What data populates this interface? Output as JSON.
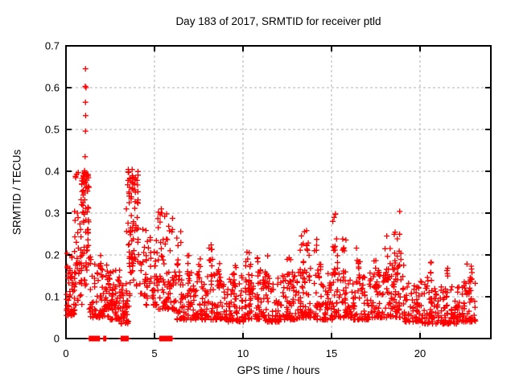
{
  "chart_data": {
    "type": "scatter",
    "title": "Day 183 of 2017, SRMTID for receiver ptld",
    "xlabel": "GPS time / hours",
    "ylabel": "SRMTID / TECUs",
    "xlim": [
      0,
      24
    ],
    "ylim": [
      0,
      0.7
    ],
    "xticks": [
      0,
      5,
      10,
      15,
      20
    ],
    "yticks": [
      0,
      0.1,
      0.2,
      0.3,
      0.4,
      0.5,
      0.6,
      0.7
    ],
    "ytick_labels": [
      "0",
      "0.1",
      "0.2",
      "0.3",
      "0.4",
      "0.5",
      "0.6",
      "0.7"
    ],
    "grid": true,
    "grid_color": "#b0b0b0",
    "marker": "plus",
    "marker_color": "#ff0000",
    "marker_size": 7,
    "seed": 20170183,
    "outliers": [
      [
        1.1,
        0.645
      ],
      [
        1.09,
        0.603
      ],
      [
        1.13,
        0.6
      ],
      [
        1.1,
        0.565
      ],
      [
        1.11,
        0.533
      ],
      [
        1.1,
        0.496
      ],
      [
        1.08,
        0.435
      ],
      [
        5.38,
        0.31
      ],
      [
        5.42,
        0.3
      ],
      [
        15.22,
        0.298
      ],
      [
        18.85,
        0.304
      ]
    ],
    "zero_runs": [
      [
        1.32,
        1.9
      ],
      [
        2.13,
        2.26
      ],
      [
        3.12,
        3.52
      ],
      [
        5.3,
        6.02
      ]
    ],
    "zero_step": 0.03,
    "clusters": [
      [
        0.02,
        0.5,
        48,
        0.055,
        0.165,
        1.6
      ],
      [
        0.05,
        0.45,
        6,
        0.165,
        0.215,
        1.0
      ],
      [
        0.45,
        0.9,
        40,
        0.08,
        0.32,
        1.5
      ],
      [
        0.85,
        1.3,
        60,
        0.12,
        0.4,
        1.0
      ],
      [
        0.5,
        1.27,
        14,
        0.365,
        0.405,
        1.0
      ],
      [
        1.3,
        2.0,
        55,
        0.05,
        0.2,
        1.8
      ],
      [
        2.0,
        2.5,
        42,
        0.05,
        0.185,
        1.7
      ],
      [
        2.5,
        3.05,
        48,
        0.045,
        0.165,
        1.8
      ],
      [
        3.05,
        3.55,
        42,
        0.035,
        0.135,
        1.6
      ],
      [
        3.4,
        4.1,
        55,
        0.15,
        0.4,
        0.9
      ],
      [
        3.45,
        4.1,
        12,
        0.365,
        0.405,
        1.0
      ],
      [
        3.55,
        4.55,
        40,
        0.1,
        0.3,
        1.3
      ],
      [
        4.4,
        5.15,
        48,
        0.08,
        0.26,
        1.7
      ],
      [
        5.1,
        6.1,
        78,
        0.07,
        0.31,
        2.0
      ],
      [
        6.1,
        7.1,
        62,
        0.045,
        0.16,
        2.0
      ],
      [
        7.1,
        8.1,
        62,
        0.045,
        0.16,
        2.0
      ],
      [
        8.1,
        9.1,
        62,
        0.045,
        0.165,
        2.0
      ],
      [
        9.1,
        10.1,
        62,
        0.04,
        0.155,
        2.0
      ],
      [
        10.1,
        11.1,
        62,
        0.045,
        0.16,
        2.0
      ],
      [
        11.1,
        12.1,
        62,
        0.04,
        0.155,
        2.0
      ],
      [
        12.1,
        13.1,
        62,
        0.045,
        0.16,
        2.0
      ],
      [
        13.1,
        14.1,
        60,
        0.05,
        0.17,
        2.0
      ],
      [
        14.1,
        15.1,
        60,
        0.045,
        0.16,
        2.0
      ],
      [
        15.1,
        16.1,
        62,
        0.05,
        0.17,
        2.0
      ],
      [
        16.1,
        17.1,
        62,
        0.045,
        0.165,
        2.0
      ],
      [
        17.1,
        18.1,
        60,
        0.05,
        0.17,
        2.0
      ],
      [
        18.1,
        19.1,
        64,
        0.05,
        0.18,
        1.8
      ],
      [
        19.1,
        20.1,
        62,
        0.04,
        0.14,
        2.0
      ],
      [
        20.1,
        21.1,
        60,
        0.035,
        0.13,
        2.0
      ],
      [
        21.1,
        22.1,
        62,
        0.035,
        0.125,
        2.0
      ],
      [
        22.1,
        23.2,
        64,
        0.04,
        0.145,
        2.0
      ],
      [
        6.18,
        6.5,
        12,
        0.14,
        0.28,
        1.3
      ],
      [
        6.85,
        7.0,
        6,
        0.13,
        0.21,
        1.2
      ],
      [
        7.35,
        7.6,
        9,
        0.13,
        0.195,
        1.2
      ],
      [
        8.05,
        8.3,
        11,
        0.13,
        0.225,
        1.2
      ],
      [
        8.55,
        8.75,
        7,
        0.12,
        0.2,
        1.2
      ],
      [
        9.4,
        9.7,
        8,
        0.13,
        0.19,
        1.2
      ],
      [
        10.15,
        10.5,
        10,
        0.13,
        0.215,
        1.2
      ],
      [
        10.8,
        11.0,
        7,
        0.13,
        0.195,
        1.2
      ],
      [
        11.25,
        11.5,
        8,
        0.12,
        0.2,
        1.2
      ],
      [
        12.45,
        12.8,
        10,
        0.13,
        0.21,
        1.2
      ],
      [
        13.2,
        13.75,
        20,
        0.14,
        0.265,
        1.2
      ],
      [
        14.0,
        14.4,
        12,
        0.13,
        0.24,
        1.2
      ],
      [
        15.05,
        15.35,
        15,
        0.15,
        0.3,
        1.1
      ],
      [
        15.6,
        15.85,
        9,
        0.13,
        0.25,
        1.2
      ],
      [
        16.4,
        16.65,
        9,
        0.13,
        0.22,
        1.2
      ],
      [
        17.4,
        17.65,
        8,
        0.12,
        0.2,
        1.2
      ],
      [
        17.95,
        18.4,
        16,
        0.14,
        0.27,
        1.3
      ],
      [
        18.5,
        18.95,
        14,
        0.14,
        0.26,
        1.2
      ],
      [
        20.4,
        20.7,
        9,
        0.11,
        0.2,
        1.2
      ],
      [
        21.4,
        21.6,
        6,
        0.1,
        0.17,
        1.2
      ],
      [
        22.4,
        22.95,
        12,
        0.1,
        0.19,
        1.2
      ]
    ]
  }
}
